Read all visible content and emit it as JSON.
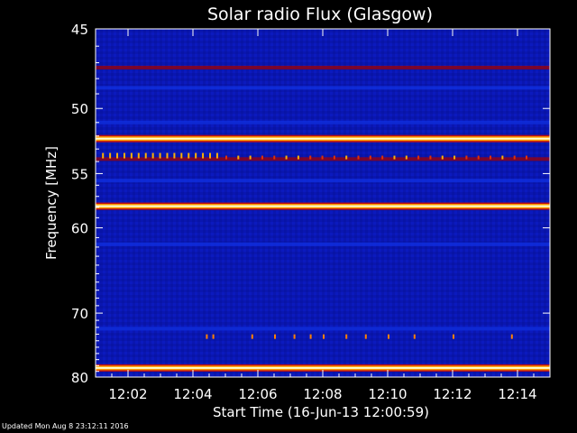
{
  "chart_data": {
    "type": "heatmap",
    "title": "Solar radio Flux (Glasgow)",
    "xlabel": "Start Time (16-Jun-13 12:00:59)",
    "ylabel": "Frequency [MHz]",
    "x_ticks": [
      "12:02",
      "12:04",
      "12:06",
      "12:08",
      "12:10",
      "12:12",
      "12:14"
    ],
    "x_tick_minutes": [
      2,
      4,
      6,
      8,
      10,
      12,
      14
    ],
    "xlim_minutes": [
      1,
      15
    ],
    "y_ticks": [
      45,
      50,
      55,
      60,
      70,
      80
    ],
    "ylim_mhz": [
      45,
      80
    ],
    "y_scale": "reciprocal",
    "grid": false,
    "colormap": [
      "#000050",
      "#0010c0",
      "#1030e0",
      "#a00000",
      "#ff4000",
      "#ffd000",
      "#ffffd0"
    ],
    "intense_bands_mhz": [
      {
        "freq": 52.2,
        "level": 0.95
      },
      {
        "freq": 57.9,
        "level": 1.0
      },
      {
        "freq": 78.4,
        "level": 1.0
      }
    ],
    "moderate_bands_mhz": [
      {
        "freq": 47.3,
        "level": 0.45
      },
      {
        "freq": 48.6,
        "level": 0.4
      },
      {
        "freq": 51.0,
        "level": 0.3
      },
      {
        "freq": 53.8,
        "level": 0.55
      },
      {
        "freq": 55.6,
        "level": 0.35
      },
      {
        "freq": 61.7,
        "level": 0.4
      },
      {
        "freq": 72.2,
        "level": 0.3
      }
    ]
  },
  "footer": {
    "updated": "Updated Mon Aug  8 23:12:11 2016"
  }
}
